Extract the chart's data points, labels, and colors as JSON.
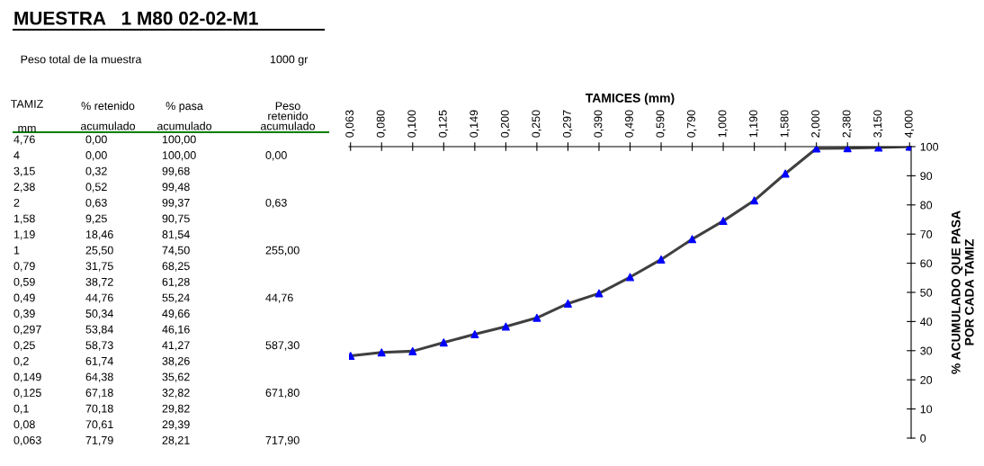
{
  "chart_data": [
    {
      "type": "other",
      "title": "MUESTRA   1 M80 02-02-M1",
      "annotations": [
        "Peso total de la muestra",
        "1000 gr"
      ],
      "xlabel": "TAMIZ\n\nmm",
      "categories": [
        "4,76",
        "4",
        "3,15",
        "2,38",
        "2",
        "1,58",
        "1,19",
        "1",
        "0,79",
        "0,59",
        "0,49",
        "0,39",
        "0,297",
        "0,25",
        "0,2",
        "0,149",
        "0,125",
        "0,1",
        "0,08",
        "0,063"
      ],
      "series": [
        {
          "name": "% retenido\n\nacumulado",
          "color": "#000000",
          "values": [
            0,
            0,
            0.32,
            0.52,
            0.63,
            9.25,
            18.46,
            25.5,
            31.75,
            38.72,
            44.76,
            50.34,
            53.84,
            58.73,
            61.74,
            64.38,
            67.18,
            70.18,
            70.61,
            71.79
          ],
          "value_labels": [
            "0,00",
            "0,00",
            "0,32",
            "0,52",
            "0,63",
            "9,25",
            "18,46",
            "25,50",
            "31,75",
            "38,72",
            "44,76",
            "50,34",
            "53,84",
            "58,73",
            "61,74",
            "64,38",
            "67,18",
            "70,18",
            "70,61",
            "71,79"
          ]
        },
        {
          "name": "% pasa\n\nacumulado",
          "color": "#000000",
          "values": [
            100,
            100,
            99.68,
            99.48,
            99.37,
            90.75,
            81.54,
            74.5,
            68.25,
            61.28,
            55.24,
            49.66,
            46.16,
            41.27,
            38.26,
            35.62,
            32.82,
            29.82,
            29.39,
            28.21
          ],
          "value_labels": [
            "100,00",
            "100,00",
            "99,68",
            "99,48",
            "99,37",
            "90,75",
            "81,54",
            "74,50",
            "68,25",
            "61,28",
            "55,24",
            "49,66",
            "46,16",
            "41,27",
            "38,26",
            "35,62",
            "32,82",
            "29,82",
            "29,39",
            "28,21"
          ]
        },
        {
          "name": "Peso\nretenido\nacumulado",
          "color": "#000000",
          "values": [
            null,
            0,
            null,
            null,
            0.63,
            null,
            null,
            255,
            null,
            null,
            44.76,
            null,
            null,
            587.3,
            null,
            null,
            671.8,
            null,
            null,
            717.9
          ],
          "value_labels": [
            null,
            "0,00",
            null,
            null,
            "0,63",
            null,
            null,
            "255,00",
            null,
            null,
            "44,76",
            null,
            null,
            "587,30",
            null,
            null,
            "671,80",
            null,
            null,
            "717,90"
          ]
        }
      ]
    },
    {
      "type": "line",
      "xlabel": "TAMICES (mm)",
      "ylabel": "% ACUMULADO QUE PASA\nPOR CADA TAMIZ",
      "categories": [
        "0,063",
        "0,080",
        "0,100",
        "0,125",
        "0,149",
        "0,200",
        "0,250",
        "0,297",
        "0,390",
        "0,490",
        "0,590",
        "0,790",
        "1,000",
        "1,190",
        "1,580",
        "2,000",
        "2,380",
        "3,150",
        "4,000"
      ],
      "series": [
        {
          "color": "#404040",
          "colors": [
            "#0000ff",
            "#0000ff",
            "#0000ff",
            "#0000ff",
            "#0000ff",
            "#0000ff",
            "#0000ff",
            "#0000ff",
            "#0000ff",
            "#0000ff",
            "#0000ff",
            "#0000ff",
            "#0000ff",
            "#0000ff",
            "#0000ff",
            "#0000ff",
            "#0000ff",
            "#0000ff",
            "#0000ff"
          ],
          "values": [
            28.21,
            29.39,
            29.82,
            32.82,
            35.62,
            38.26,
            41.27,
            46.16,
            49.66,
            55.24,
            61.28,
            68.25,
            74.5,
            81.54,
            90.75,
            99.37,
            99.48,
            99.68,
            100
          ]
        }
      ],
      "ylim": [
        0,
        100
      ],
      "yticks": [
        0,
        10,
        20,
        30,
        40,
        50,
        60,
        70,
        80,
        90,
        100
      ],
      "marker": "triangle",
      "line_style": "solid",
      "grid": false,
      "legend": false
    }
  ]
}
